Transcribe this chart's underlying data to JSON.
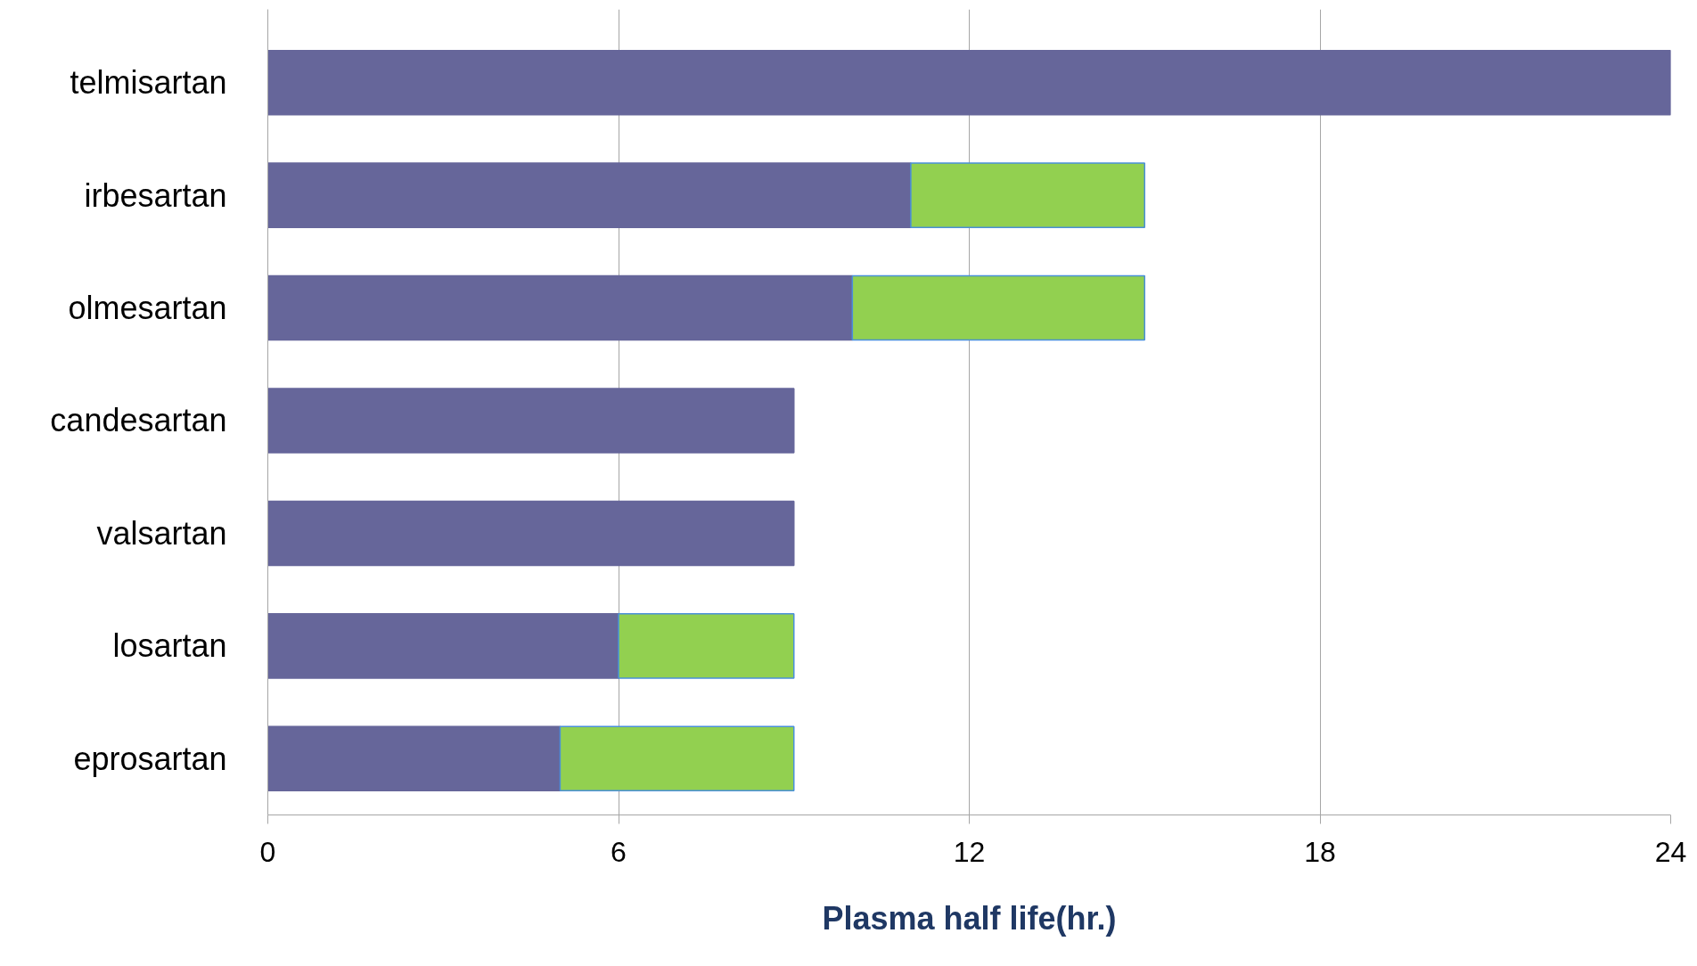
{
  "chart_data": {
    "type": "bar",
    "orientation": "horizontal",
    "stacked": true,
    "categories": [
      "telmisartan",
      "irbesartan",
      "olmesartan",
      "candesartan",
      "valsartan",
      "losartan",
      "eprosartan"
    ],
    "series": [
      {
        "color": "#66669a",
        "values": [
          24,
          11,
          10,
          9,
          9,
          6,
          5
        ]
      },
      {
        "color": "#92d050",
        "values": [
          null,
          4,
          5,
          null,
          null,
          3,
          4
        ]
      }
    ],
    "xlabel": "Plasma half life(hr.)",
    "xlim": [
      0,
      24
    ],
    "xticks": [
      0,
      6,
      12,
      18,
      24
    ],
    "grid": "x"
  }
}
